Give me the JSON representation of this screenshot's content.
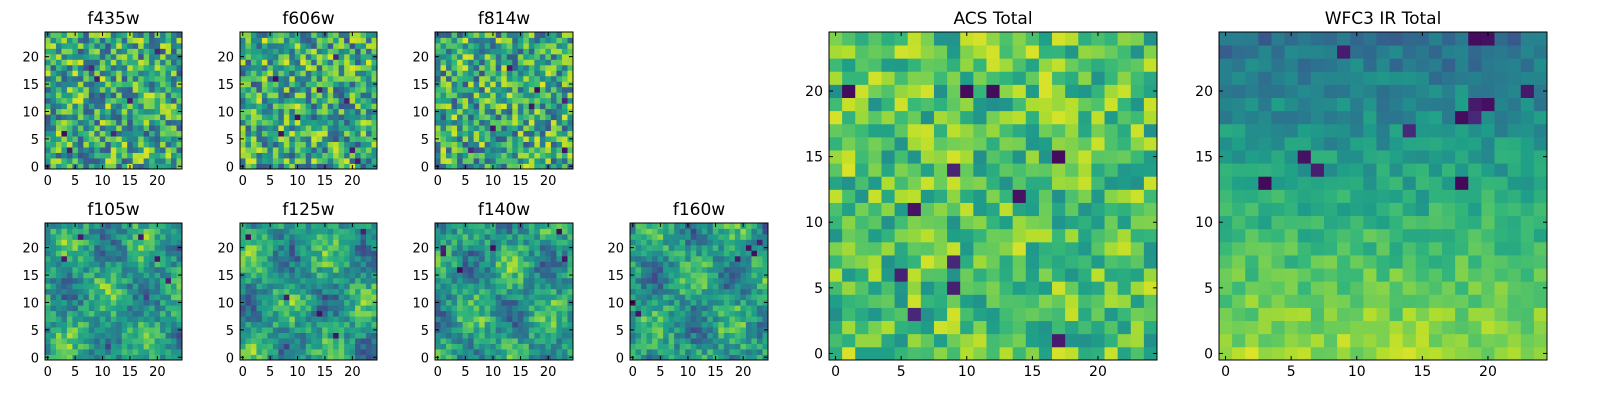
{
  "chart_data": [
    {
      "type": "heatmap",
      "title": "f435w",
      "size": 25,
      "xticks": [
        "0",
        "5",
        "10",
        "15",
        "20"
      ],
      "yticks": [
        "0",
        "5",
        "10",
        "15",
        "20"
      ],
      "texture": "fine-noise",
      "dark_cells": [
        [
          4,
          3
        ],
        [
          8,
          18
        ],
        [
          20,
          21
        ],
        [
          9,
          16
        ],
        [
          15,
          12
        ],
        [
          3,
          6
        ],
        [
          12,
          6
        ]
      ],
      "colormap": "viridis"
    },
    {
      "type": "heatmap",
      "title": "f606w",
      "size": 25,
      "xticks": [
        "0",
        "5",
        "10",
        "15",
        "20"
      ],
      "yticks": [
        "0",
        "5",
        "10",
        "15",
        "20"
      ],
      "texture": "fine-noise",
      "dark_cells": [
        [
          7,
          6
        ],
        [
          10,
          9
        ],
        [
          14,
          14
        ],
        [
          17,
          20
        ],
        [
          20,
          3
        ],
        [
          6,
          16
        ],
        [
          19,
          12
        ],
        [
          21,
          1
        ]
      ],
      "colormap": "viridis"
    },
    {
      "type": "heatmap",
      "title": "f814w",
      "size": 25,
      "xticks": [
        "0",
        "5",
        "10",
        "15",
        "20"
      ],
      "yticks": [
        "0",
        "5",
        "10",
        "15",
        "20"
      ],
      "texture": "fine-noise",
      "dark_cells": [
        [
          6,
          3
        ],
        [
          10,
          7
        ],
        [
          13,
          18
        ],
        [
          17,
          11
        ],
        [
          18,
          14
        ],
        [
          23,
          3
        ],
        [
          23,
          12
        ]
      ],
      "colormap": "viridis"
    },
    {
      "type": "heatmap",
      "title": "f105w",
      "size": 25,
      "xticks": [
        "0",
        "5",
        "10",
        "15",
        "20"
      ],
      "yticks": [
        "0",
        "5",
        "10",
        "15",
        "20"
      ],
      "texture": "smooth",
      "dark_cells": [
        [
          3,
          18
        ],
        [
          20,
          18
        ],
        [
          17,
          22
        ],
        [
          22,
          14
        ],
        [
          6,
          22
        ]
      ],
      "colormap": "viridis"
    },
    {
      "type": "heatmap",
      "title": "f125w",
      "size": 25,
      "xticks": [
        "0",
        "5",
        "10",
        "15",
        "20"
      ],
      "yticks": [
        "0",
        "5",
        "10",
        "15",
        "20"
      ],
      "texture": "smooth",
      "dark_cells": [
        [
          1,
          22
        ],
        [
          22,
          23
        ],
        [
          14,
          8
        ],
        [
          17,
          4
        ],
        [
          8,
          11
        ]
      ],
      "colormap": "viridis"
    },
    {
      "type": "heatmap",
      "title": "f140w",
      "size": 25,
      "xticks": [
        "0",
        "5",
        "10",
        "15",
        "20"
      ],
      "yticks": [
        "0",
        "5",
        "10",
        "15",
        "20"
      ],
      "texture": "smooth",
      "dark_cells": [
        [
          1,
          20
        ],
        [
          1,
          19
        ],
        [
          4,
          16
        ],
        [
          10,
          20
        ],
        [
          22,
          23
        ],
        [
          23,
          18
        ]
      ],
      "colormap": "viridis"
    },
    {
      "type": "heatmap",
      "title": "f160w",
      "size": 25,
      "xticks": [
        "0",
        "5",
        "10",
        "15",
        "20"
      ],
      "yticks": [
        "0",
        "5",
        "10",
        "15",
        "20"
      ],
      "texture": "smooth",
      "dark_cells": [
        [
          0,
          10
        ],
        [
          1,
          8
        ],
        [
          19,
          18
        ],
        [
          21,
          20
        ],
        [
          22,
          19
        ],
        [
          23,
          21
        ]
      ],
      "colormap": "viridis"
    },
    {
      "type": "heatmap",
      "title": "ACS Total",
      "size": 25,
      "xticks": [
        "0",
        "5",
        "10",
        "15",
        "20"
      ],
      "yticks": [
        "0",
        "5",
        "10",
        "15",
        "20"
      ],
      "texture": "blocky",
      "dark_cells": [
        [
          12,
          20
        ],
        [
          9,
          14
        ],
        [
          17,
          15
        ],
        [
          14,
          12
        ],
        [
          6,
          11
        ],
        [
          5,
          6
        ],
        [
          9,
          7
        ],
        [
          9,
          5
        ],
        [
          6,
          3
        ],
        [
          17,
          1
        ],
        [
          1,
          20
        ],
        [
          10,
          20
        ]
      ],
      "colormap": "viridis"
    },
    {
      "type": "heatmap",
      "title": "WFC3 IR Total",
      "size": 25,
      "xticks": [
        "0",
        "5",
        "10",
        "15",
        "20"
      ],
      "yticks": [
        "0",
        "5",
        "10",
        "15",
        "20"
      ],
      "texture": "smooth",
      "dark_cells": [
        [
          19,
          24
        ],
        [
          20,
          24
        ],
        [
          9,
          23
        ],
        [
          19,
          19
        ],
        [
          20,
          19
        ],
        [
          18,
          18
        ],
        [
          19,
          18
        ],
        [
          14,
          17
        ],
        [
          6,
          15
        ],
        [
          7,
          14
        ],
        [
          18,
          13
        ],
        [
          3,
          13
        ],
        [
          23,
          20
        ]
      ],
      "colormap": "viridis"
    }
  ]
}
